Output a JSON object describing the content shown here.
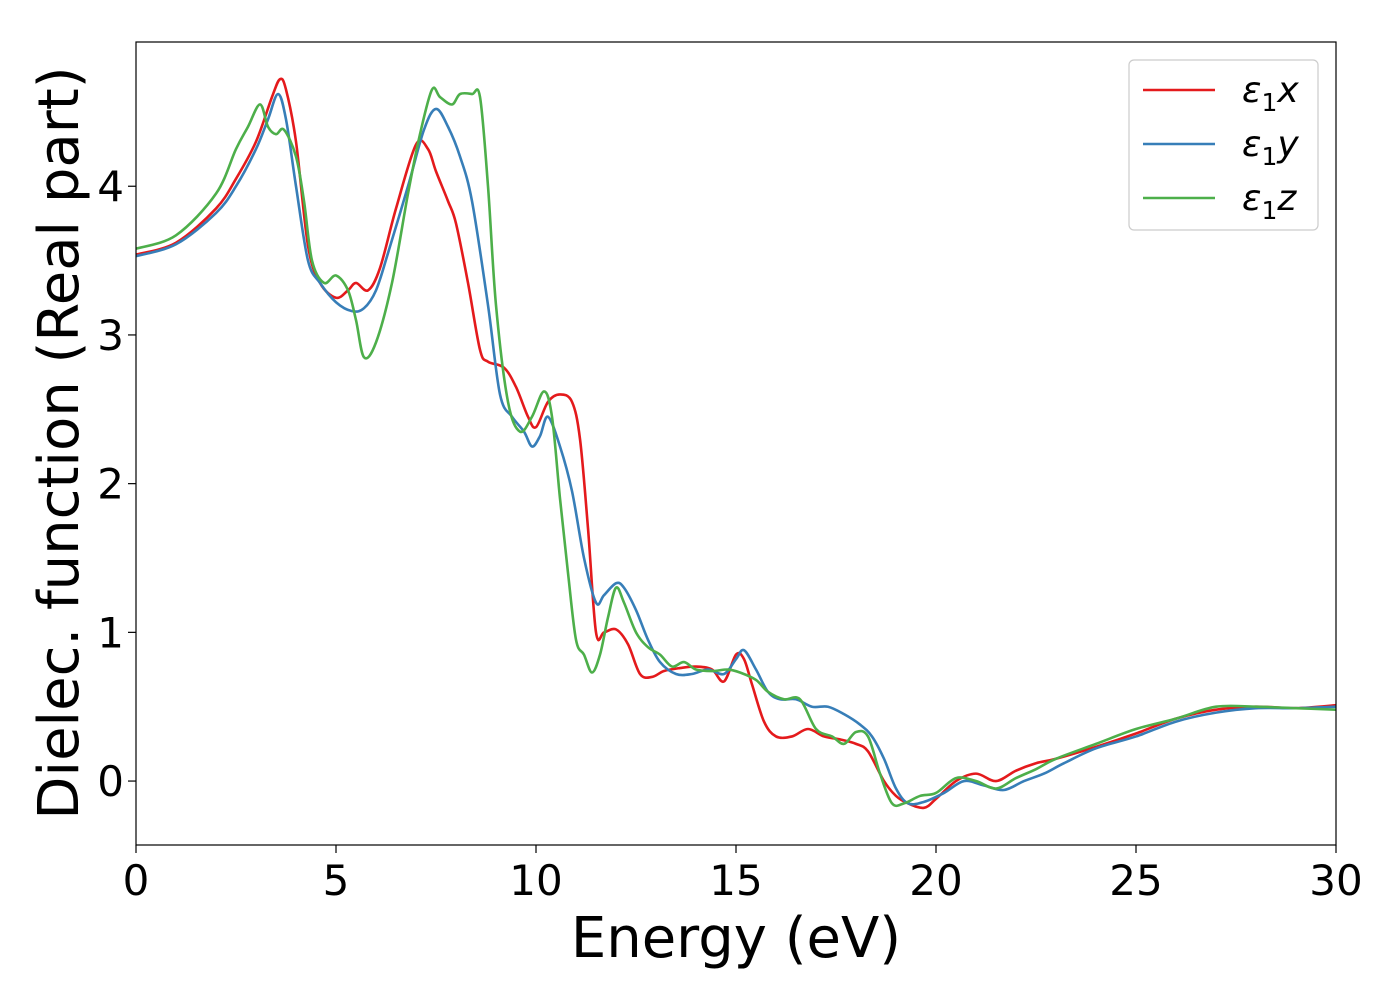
{
  "chart_data": {
    "type": "line",
    "title": "",
    "xlabel": "Energy (eV)",
    "ylabel": "Dielec. function (Real part)",
    "xlim": [
      0,
      30
    ],
    "ylim": [
      -0.43,
      4.97
    ],
    "xticks": [
      0,
      5,
      10,
      15,
      20,
      25,
      30
    ],
    "xtick_labels": [
      "0",
      "5",
      "10",
      "15",
      "20",
      "25",
      "30"
    ],
    "yticks": [
      0,
      1,
      2,
      3,
      4
    ],
    "ytick_labels": [
      "0",
      "1",
      "2",
      "3",
      "4"
    ],
    "grid": false,
    "legend_position": "top-right",
    "series": [
      {
        "name": "ε₁x",
        "legend_base": "ε",
        "legend_sub": "1",
        "legend_suffix": "x",
        "color": "#e41a1c",
        "x": [
          0,
          1,
          2,
          2.5,
          3,
          3.4,
          3.6,
          3.75,
          4.0,
          4.3,
          4.6,
          5.0,
          5.3,
          5.5,
          5.8,
          6.1,
          6.5,
          7.0,
          7.3,
          7.5,
          7.8,
          8.0,
          8.3,
          8.6,
          8.8,
          9.2,
          9.5,
          9.8,
          10.0,
          10.3,
          10.6,
          10.9,
          11.1,
          11.3,
          11.5,
          11.7,
          12.0,
          12.3,
          12.6,
          12.9,
          13.2,
          13.6,
          14.0,
          14.4,
          14.7,
          15.0,
          15.2,
          15.4,
          15.7,
          16.0,
          16.4,
          16.8,
          17.2,
          17.6,
          18.0,
          18.3,
          18.7,
          19.0,
          19.3,
          19.7,
          20.0,
          20.5,
          21.0,
          21.5,
          22.0,
          22.5,
          23.0,
          24.0,
          25.0,
          26.0,
          27.0,
          28.0,
          29.0,
          30.0
        ],
        "y": [
          3.54,
          3.62,
          3.85,
          4.05,
          4.3,
          4.6,
          4.72,
          4.65,
          4.3,
          3.6,
          3.35,
          3.25,
          3.3,
          3.35,
          3.3,
          3.45,
          3.85,
          4.28,
          4.25,
          4.1,
          3.9,
          3.75,
          3.35,
          2.9,
          2.82,
          2.78,
          2.65,
          2.45,
          2.38,
          2.55,
          2.6,
          2.55,
          2.3,
          1.7,
          1.0,
          1.0,
          1.02,
          0.92,
          0.72,
          0.7,
          0.74,
          0.76,
          0.77,
          0.75,
          0.67,
          0.85,
          0.82,
          0.65,
          0.4,
          0.3,
          0.3,
          0.35,
          0.3,
          0.28,
          0.25,
          0.2,
          0.0,
          -0.1,
          -0.15,
          -0.18,
          -0.12,
          0.0,
          0.05,
          0.0,
          0.07,
          0.12,
          0.15,
          0.23,
          0.32,
          0.42,
          0.48,
          0.5,
          0.49,
          0.51
        ]
      },
      {
        "name": "ε₁y",
        "legend_base": "ε",
        "legend_sub": "1",
        "legend_suffix": "y",
        "color": "#377eb8",
        "x": [
          0,
          1,
          2,
          2.5,
          3,
          3.3,
          3.55,
          3.75,
          4.0,
          4.3,
          4.6,
          5.0,
          5.4,
          5.7,
          6.0,
          6.3,
          6.8,
          7.2,
          7.5,
          7.8,
          8.1,
          8.4,
          8.8,
          9.1,
          9.4,
          9.7,
          9.9,
          10.1,
          10.3,
          10.6,
          10.9,
          11.2,
          11.5,
          11.7,
          12.0,
          12.2,
          12.5,
          12.8,
          13.1,
          13.5,
          13.9,
          14.3,
          14.7,
          15.0,
          15.2,
          15.5,
          15.8,
          16.1,
          16.5,
          16.9,
          17.3,
          17.7,
          18.1,
          18.4,
          18.7,
          19.0,
          19.3,
          19.7,
          20.2,
          20.7,
          21.2,
          21.7,
          22.2,
          22.7,
          23.2,
          24.0,
          25.0,
          26.0,
          27.0,
          28.0,
          29.0,
          30.0
        ],
        "y": [
          3.53,
          3.61,
          3.82,
          4.0,
          4.25,
          4.45,
          4.62,
          4.45,
          4.0,
          3.5,
          3.35,
          3.22,
          3.16,
          3.18,
          3.3,
          3.55,
          4.0,
          4.38,
          4.52,
          4.4,
          4.2,
          3.9,
          3.2,
          2.6,
          2.45,
          2.35,
          2.25,
          2.32,
          2.45,
          2.25,
          1.95,
          1.5,
          1.2,
          1.25,
          1.33,
          1.3,
          1.15,
          0.95,
          0.8,
          0.72,
          0.72,
          0.75,
          0.72,
          0.82,
          0.88,
          0.75,
          0.6,
          0.55,
          0.55,
          0.5,
          0.5,
          0.45,
          0.38,
          0.3,
          0.15,
          -0.05,
          -0.15,
          -0.14,
          -0.08,
          0.0,
          -0.03,
          -0.06,
          0.0,
          0.05,
          0.12,
          0.22,
          0.3,
          0.4,
          0.46,
          0.49,
          0.49,
          0.5
        ]
      },
      {
        "name": "ε₁z",
        "legend_base": "ε",
        "legend_sub": "1",
        "legend_suffix": "z",
        "color": "#4daf4a",
        "x": [
          0,
          1,
          2,
          2.5,
          2.8,
          3.1,
          3.3,
          3.5,
          3.7,
          4.0,
          4.2,
          4.4,
          4.7,
          5.0,
          5.3,
          5.5,
          5.7,
          6.0,
          6.4,
          6.8,
          7.1,
          7.4,
          7.6,
          7.9,
          8.1,
          8.4,
          8.6,
          8.8,
          9.0,
          9.3,
          9.6,
          9.9,
          10.2,
          10.4,
          10.6,
          10.8,
          11.0,
          11.2,
          11.4,
          11.6,
          11.8,
          12.0,
          12.2,
          12.5,
          12.8,
          13.1,
          13.4,
          13.7,
          14.0,
          14.4,
          14.8,
          15.1,
          15.5,
          15.8,
          16.2,
          16.6,
          17.0,
          17.4,
          17.7,
          18.0,
          18.3,
          18.6,
          18.9,
          19.2,
          19.6,
          20.0,
          20.5,
          21.0,
          21.5,
          22.0,
          22.5,
          23.0,
          24.0,
          25.0,
          26.0,
          27.0,
          28.0,
          29.0,
          30.0
        ],
        "y": [
          3.58,
          3.67,
          3.95,
          4.25,
          4.4,
          4.55,
          4.4,
          4.35,
          4.38,
          4.2,
          3.9,
          3.5,
          3.35,
          3.4,
          3.3,
          3.1,
          2.85,
          2.95,
          3.35,
          3.95,
          4.35,
          4.65,
          4.6,
          4.55,
          4.62,
          4.62,
          4.6,
          4.0,
          3.2,
          2.55,
          2.35,
          2.45,
          2.62,
          2.45,
          1.9,
          1.4,
          0.95,
          0.85,
          0.73,
          0.85,
          1.1,
          1.3,
          1.2,
          1.0,
          0.9,
          0.85,
          0.77,
          0.8,
          0.75,
          0.74,
          0.75,
          0.73,
          0.68,
          0.6,
          0.55,
          0.55,
          0.35,
          0.3,
          0.25,
          0.33,
          0.3,
          0.05,
          -0.15,
          -0.15,
          -0.1,
          -0.08,
          0.02,
          0.0,
          -0.05,
          0.02,
          0.08,
          0.15,
          0.25,
          0.35,
          0.42,
          0.5,
          0.5,
          0.49,
          0.48
        ]
      }
    ]
  }
}
